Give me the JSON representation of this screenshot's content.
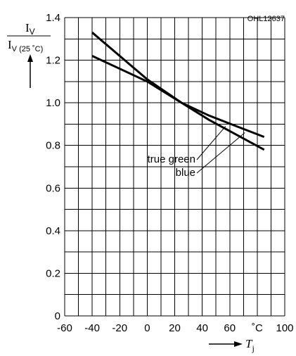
{
  "chart_data": {
    "type": "line",
    "code": "OHL12637",
    "ylabel": {
      "numerator": "I",
      "numerator_sub": "V",
      "denominator": "I",
      "denominator_sub": "V (25 ˚C)"
    },
    "xlabel": {
      "symbol": "T",
      "sub": "j"
    },
    "x_unit": "˚C",
    "xlim": [
      -60,
      100
    ],
    "ylim": [
      0,
      1.4
    ],
    "x_ticks": [
      "-60",
      "-40",
      "-20",
      "0",
      "20",
      "40",
      "60",
      "100"
    ],
    "x_tick_values": [
      -60,
      -40,
      -20,
      0,
      20,
      40,
      60,
      100
    ],
    "y_ticks": [
      "0",
      "0.2",
      "0.4",
      "0.6",
      "0.8",
      "1.0",
      "1.2",
      "1.4"
    ],
    "y_tick_values": [
      0,
      0.2,
      0.4,
      0.6,
      0.8,
      1.0,
      1.2,
      1.4
    ],
    "grid": {
      "x_step": 10,
      "y_step": 0.1
    },
    "series": [
      {
        "name": "true green",
        "x": [
          -40,
          -20,
          0,
          25,
          45,
          65,
          85
        ],
        "y": [
          1.22,
          1.16,
          1.1,
          1.0,
          0.94,
          0.89,
          0.84
        ]
      },
      {
        "name": "blue",
        "x": [
          -40,
          -20,
          0,
          25,
          45,
          65,
          85
        ],
        "y": [
          1.33,
          1.22,
          1.11,
          1.0,
          0.92,
          0.85,
          0.78
        ]
      }
    ]
  }
}
